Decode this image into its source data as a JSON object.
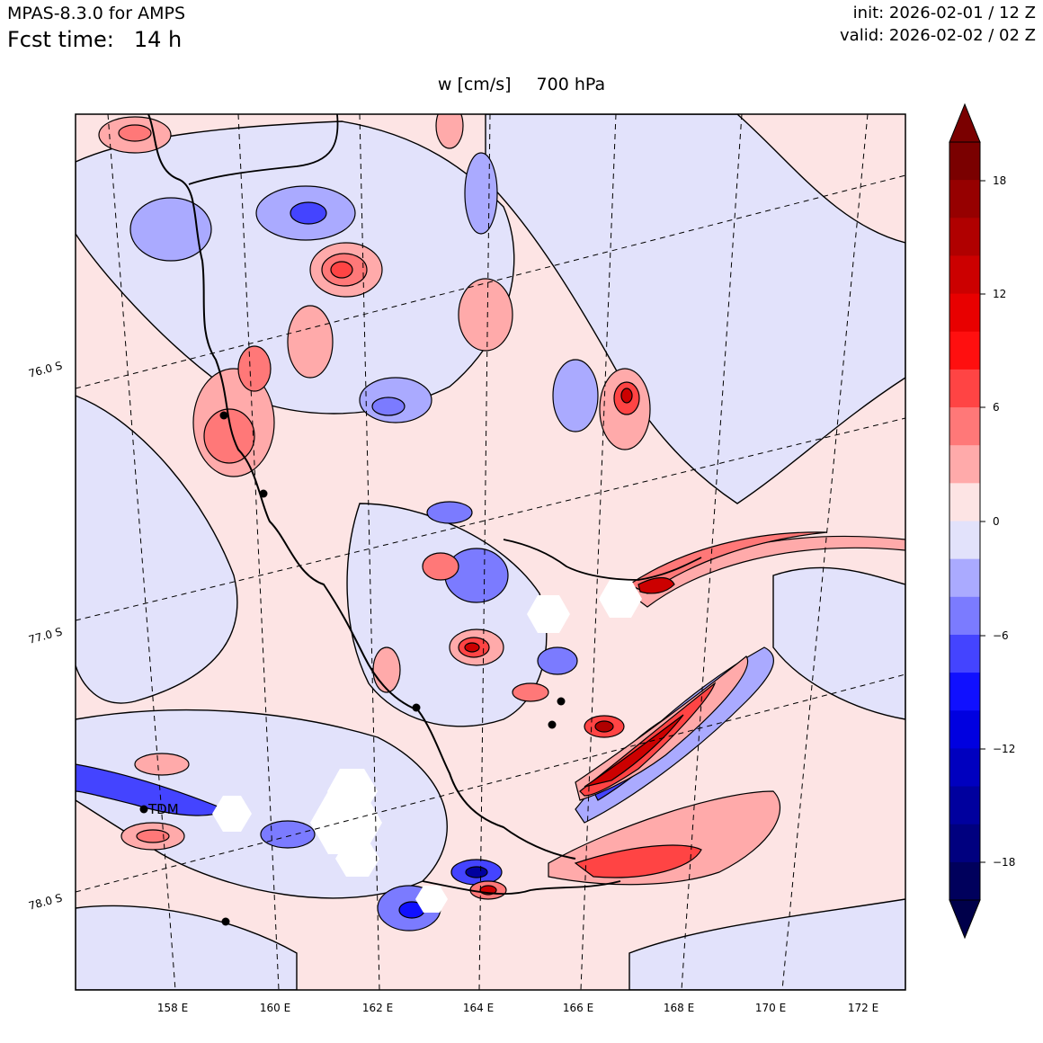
{
  "header": {
    "model": "MPAS-8.3.0 for AMPS",
    "fcst_label": "Fcst time:",
    "fcst_value": "14 h",
    "init": "init: 2026-02-01 / 12 Z",
    "valid": "valid: 2026-02-02 / 02 Z"
  },
  "figure": {
    "variable": "w [cm/s]",
    "level": "700 hPa"
  },
  "map": {
    "lon_labels": [
      "158 E",
      "160 E",
      "162 E",
      "164 E",
      "166 E",
      "168 E",
      "170 E",
      "172 E"
    ],
    "lat_labels": [
      "76.0 S",
      "77.0 S",
      "78.0 S"
    ],
    "station_label": "TDM"
  },
  "colorbar": {
    "ticks": [
      "18",
      "12",
      "6",
      "0",
      "−6",
      "−12",
      "−18"
    ],
    "colors": [
      "#7a0000",
      "#960000",
      "#b00000",
      "#cc0000",
      "#e80000",
      "#ff0f0f",
      "#ff4444",
      "#ff7878",
      "#ffaaaa",
      "#fde4e4",
      "#e2e2fb",
      "#aaaaff",
      "#7b7bff",
      "#4444ff",
      "#1010ff",
      "#0000e0",
      "#0000bf",
      "#00009e",
      "#00007f",
      "#00005c"
    ],
    "extend_max_color": "#7a0000",
    "extend_min_color": "#00004a"
  },
  "legend_colors": {
    "background_positive": "#fde4e4",
    "background_negative": "#e2e2fb"
  }
}
